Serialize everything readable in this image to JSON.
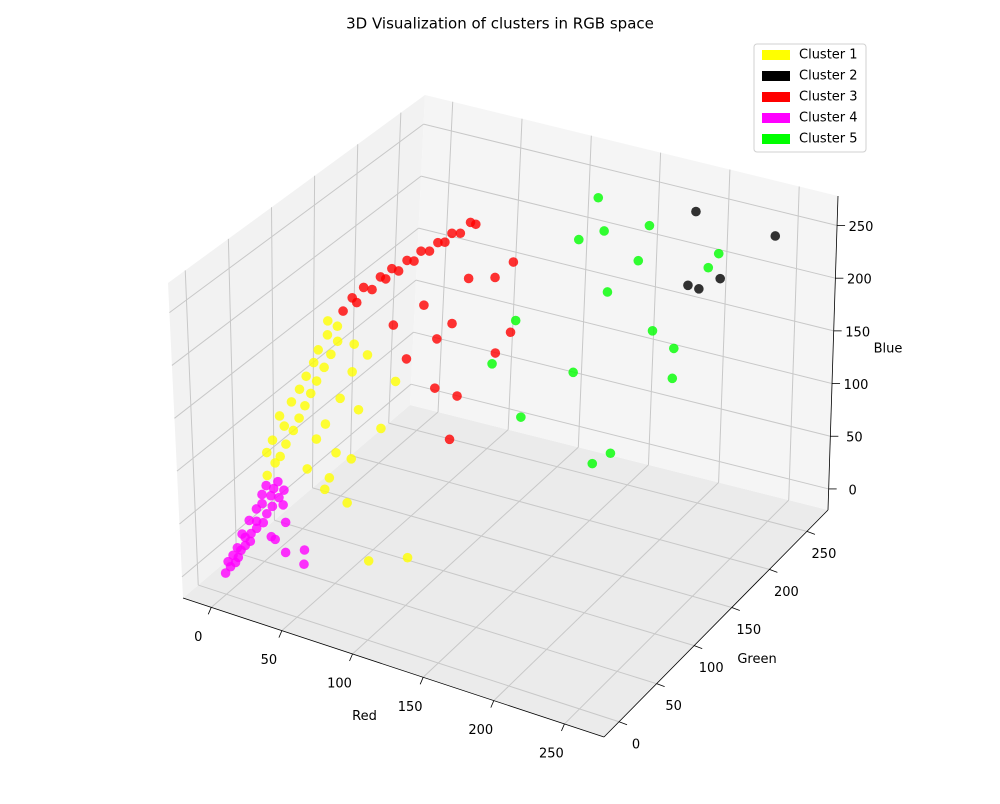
{
  "chart_data": {
    "type": "scatter3d",
    "title": "3D Visualization of clusters in RGB space",
    "x_label": "Red",
    "y_label": "Green",
    "z_label": "Blue",
    "xlim": [
      -20,
      278
    ],
    "ylim": [
      -20,
      278
    ],
    "zlim": [
      -20,
      278
    ],
    "xticks": [
      0,
      50,
      100,
      150,
      200,
      250
    ],
    "yticks": [
      0,
      50,
      100,
      150,
      200,
      250
    ],
    "zticks": [
      0,
      50,
      100,
      150,
      200,
      250
    ],
    "grid": true,
    "legend": "upper right",
    "series": [
      {
        "name": "Cluster 1",
        "color": "#ffff00",
        "x": [
          15,
          18,
          20,
          14,
          22,
          16,
          24,
          20,
          26,
          18,
          28,
          22,
          30,
          25,
          32,
          27,
          34,
          29,
          36,
          30,
          38,
          32,
          35,
          30,
          40,
          45,
          50,
          55,
          35,
          48,
          42,
          60,
          50,
          38,
          55,
          65,
          70,
          80,
          105,
          45,
          52
        ],
        "y": [
          30,
          35,
          38,
          32,
          42,
          36,
          48,
          44,
          52,
          42,
          56,
          50,
          60,
          55,
          64,
          60,
          70,
          66,
          75,
          70,
          80,
          78,
          85,
          82,
          60,
          70,
          55,
          65,
          45,
          80,
          60,
          50,
          40,
          52,
          75,
          85,
          95,
          40,
          45,
          88,
          92
        ],
        "z": [
          80,
          90,
          95,
          100,
          105,
          110,
          115,
          120,
          125,
          130,
          135,
          140,
          145,
          150,
          155,
          160,
          165,
          170,
          175,
          180,
          185,
          190,
          195,
          200,
          120,
          140,
          100,
          90,
          85,
          160,
          70,
          60,
          75,
          110,
          130,
          110,
          150,
          20,
          30,
          180,
          170
        ]
      },
      {
        "name": "Cluster 2",
        "color": "#000000",
        "x": [
          190,
          250,
          240,
          200,
          205
        ],
        "y": [
          255,
          250,
          200,
          230,
          235
        ],
        "z": [
          250,
          250,
          240,
          200,
          195
        ]
      },
      {
        "name": "Cluster 3",
        "color": "#ff0000",
        "x": [
          35,
          40,
          38,
          45,
          42,
          50,
          48,
          55,
          52,
          60,
          58,
          65,
          62,
          70,
          68,
          75,
          72,
          80,
          78,
          60,
          70,
          90,
          100,
          85,
          110,
          95,
          105,
          115,
          120,
          108,
          90,
          75
        ],
        "y": [
          92,
          100,
          98,
          110,
          105,
          118,
          115,
          125,
          122,
          135,
          130,
          145,
          140,
          155,
          150,
          165,
          160,
          175,
          172,
          110,
          130,
          150,
          165,
          120,
          170,
          100,
          110,
          140,
          150,
          95,
          130,
          100
        ],
        "z": [
          205,
          210,
          215,
          218,
          222,
          225,
          228,
          230,
          233,
          235,
          238,
          240,
          242,
          244,
          246,
          248,
          250,
          252,
          255,
          190,
          200,
          220,
          215,
          180,
          230,
          150,
          140,
          165,
          180,
          110,
          190,
          170
        ]
      },
      {
        "name": "Cluster 4",
        "color": "#ff00ff",
        "x": [
          0,
          2,
          4,
          1,
          5,
          3,
          6,
          8,
          4,
          10,
          7,
          9,
          12,
          6,
          11,
          14,
          8,
          15,
          10,
          13,
          18,
          16,
          12,
          20,
          17,
          22,
          14,
          25,
          35,
          30,
          40,
          45,
          28,
          20,
          19
        ],
        "y": [
          0,
          3,
          6,
          2,
          8,
          5,
          10,
          12,
          9,
          15,
          14,
          18,
          20,
          12,
          22,
          25,
          18,
          28,
          24,
          26,
          30,
          32,
          28,
          35,
          34,
          38,
          30,
          20,
          15,
          25,
          30,
          20,
          10,
          40,
          36
        ],
        "z": [
          0,
          5,
          8,
          10,
          12,
          15,
          18,
          22,
          20,
          25,
          28,
          30,
          35,
          32,
          40,
          38,
          42,
          45,
          50,
          55,
          52,
          60,
          62,
          58,
          66,
          64,
          70,
          30,
          25,
          45,
          20,
          15,
          40,
          48,
          72
        ]
      },
      {
        "name": "Cluster 5",
        "color": "#00ff00",
        "x": [
          130,
          140,
          100,
          120,
          110,
          125,
          150,
          160,
          140,
          170,
          180,
          90,
          95,
          185,
          200,
          210,
          120
        ],
        "y": [
          240,
          245,
          200,
          230,
          250,
          255,
          255,
          250,
          235,
          240,
          250,
          180,
          200,
          240,
          255,
          250,
          255
        ],
        "z": [
          0,
          10,
          60,
          90,
          200,
          210,
          190,
          230,
          170,
          140,
          120,
          120,
          150,
          100,
          200,
          220,
          240
        ]
      }
    ]
  }
}
